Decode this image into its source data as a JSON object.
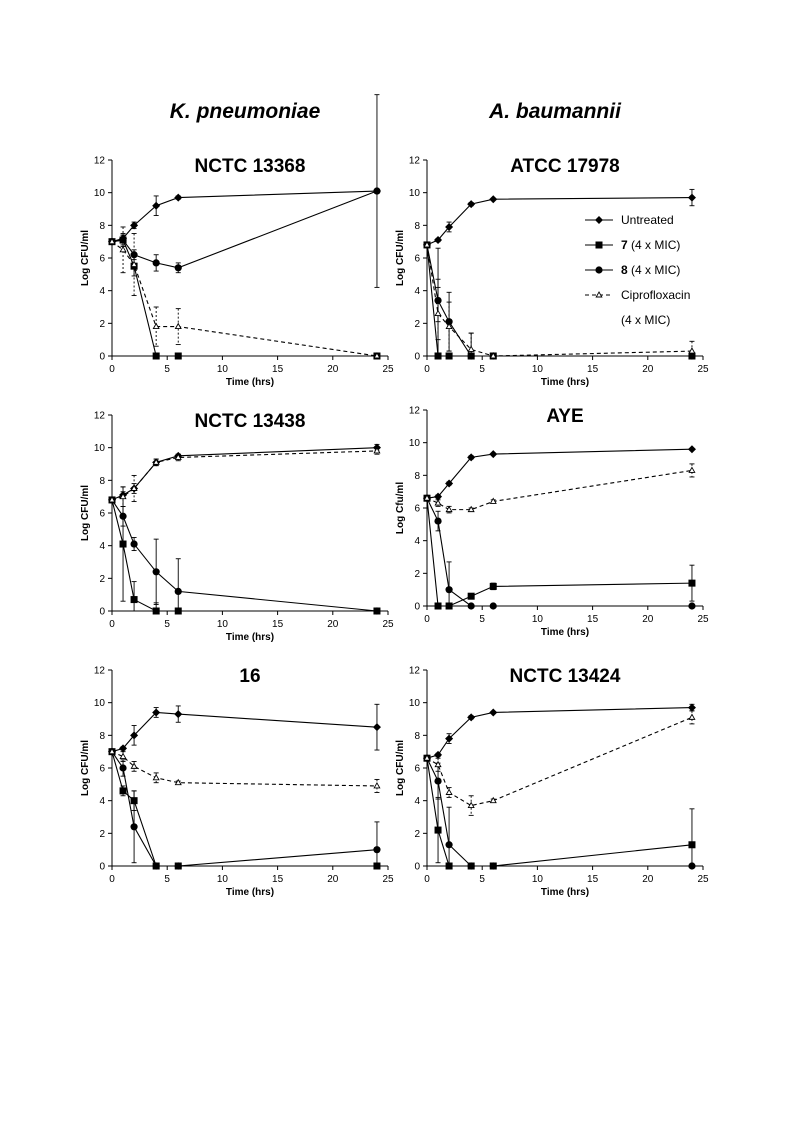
{
  "headers": {
    "left": "K. pneumoniae",
    "right": "A. baumannii"
  },
  "legend": {
    "entries": [
      {
        "key": "untreated",
        "bold": "",
        "label": "Untreated"
      },
      {
        "key": "c7",
        "bold": "7",
        "label": " (4 x MIC)"
      },
      {
        "key": "c8",
        "bold": "8",
        "label": " (4 x MIC)"
      },
      {
        "key": "cipro",
        "bold": "",
        "label": "Ciprofloxacin"
      }
    ],
    "extra_line": "(4 x MIC)"
  },
  "chart_data": [
    {
      "type": "line",
      "title": "NCTC 13368",
      "xlabel": "Time (hrs)",
      "ylabel": "Log CFU/ml",
      "xlim": [
        0,
        25
      ],
      "ylim": [
        0,
        12
      ],
      "xticks": [
        0,
        5,
        10,
        15,
        20,
        25
      ],
      "yticks": [
        0,
        2,
        4,
        6,
        8,
        10,
        12
      ],
      "series": [
        {
          "key": "untreated",
          "x": [
            0,
            1,
            2,
            4,
            6,
            24
          ],
          "y": [
            7.0,
            7.2,
            8.0,
            9.2,
            9.7,
            10.1
          ],
          "err": [
            0,
            0.2,
            0.2,
            0.6,
            0.1,
            0
          ]
        },
        {
          "key": "c7",
          "x": [
            0,
            1,
            2,
            4,
            6,
            24
          ],
          "y": [
            7.0,
            7.1,
            5.5,
            0,
            0,
            0
          ],
          "err": [
            0,
            0.3,
            0.6,
            0,
            0,
            0
          ]
        },
        {
          "key": "c8",
          "x": [
            0,
            1,
            2,
            4,
            6,
            24
          ],
          "y": [
            7.0,
            7.1,
            6.2,
            5.7,
            5.4,
            10.1
          ],
          "err": [
            0,
            0.4,
            0.3,
            0.5,
            0.3,
            5.9
          ]
        },
        {
          "key": "cipro",
          "x": [
            0,
            1,
            2,
            4,
            6,
            24
          ],
          "y": [
            7.0,
            6.5,
            5.6,
            1.8,
            1.8,
            0
          ],
          "err": [
            0,
            1.4,
            1.9,
            1.2,
            1.1,
            0
          ]
        }
      ]
    },
    {
      "type": "line",
      "title": "ATCC 17978",
      "xlabel": "Time (hrs)",
      "ylabel": "Log CFU/ml",
      "xlim": [
        0,
        25
      ],
      "ylim": [
        0,
        12
      ],
      "xticks": [
        0,
        5,
        10,
        15,
        20,
        25
      ],
      "yticks": [
        0,
        2,
        4,
        6,
        8,
        10,
        12
      ],
      "legend": true,
      "series": [
        {
          "key": "untreated",
          "x": [
            0,
            1,
            2,
            4,
            6,
            24
          ],
          "y": [
            6.8,
            7.1,
            7.9,
            9.3,
            9.6,
            9.7
          ],
          "err": [
            0,
            0.1,
            0.3,
            0.1,
            0.05,
            0.5
          ]
        },
        {
          "key": "c7",
          "x": [
            0,
            1,
            2,
            4,
            6,
            24
          ],
          "y": [
            6.8,
            0,
            0,
            0,
            0,
            0
          ],
          "err": [
            0,
            6.6,
            0,
            0,
            0,
            0
          ]
        },
        {
          "key": "c8",
          "x": [
            0,
            1,
            2,
            4,
            6,
            24
          ],
          "y": [
            6.8,
            3.4,
            2.1,
            0,
            0,
            0
          ],
          "err": [
            0,
            1.3,
            1.8,
            1.4,
            0,
            0
          ]
        },
        {
          "key": "cipro",
          "x": [
            0,
            1,
            2,
            4,
            6,
            24
          ],
          "y": [
            6.8,
            2.6,
            1.8,
            0.4,
            0,
            0.3
          ],
          "err": [
            0,
            1.6,
            1.5,
            1.0,
            0,
            0.6
          ]
        }
      ]
    },
    {
      "type": "line",
      "title": "NCTC 13438",
      "xlabel": "Time (hrs)",
      "ylabel": "Log CFU/ml",
      "xlim": [
        0,
        25
      ],
      "ylim": [
        0,
        12
      ],
      "xticks": [
        0,
        5,
        10,
        15,
        20,
        25
      ],
      "yticks": [
        0,
        2,
        4,
        6,
        8,
        10,
        12
      ],
      "series": [
        {
          "key": "untreated",
          "x": [
            0,
            1,
            2,
            4,
            6,
            24
          ],
          "y": [
            6.8,
            7.1,
            7.5,
            9.1,
            9.5,
            10.0
          ],
          "err": [
            0,
            0.2,
            0.3,
            0.2,
            0.1,
            0.2
          ]
        },
        {
          "key": "c7",
          "x": [
            0,
            1,
            2,
            4,
            6,
            24
          ],
          "y": [
            6.8,
            4.1,
            0.7,
            0,
            0,
            0
          ],
          "err": [
            0,
            3.5,
            1.1,
            0.5,
            0,
            0
          ]
        },
        {
          "key": "c8",
          "x": [
            0,
            1,
            2,
            4,
            6,
            24
          ],
          "y": [
            6.8,
            5.8,
            4.1,
            2.4,
            1.2,
            0
          ],
          "err": [
            0,
            0.6,
            0.4,
            2.0,
            2.0,
            0
          ]
        },
        {
          "key": "cipro",
          "x": [
            0,
            1,
            2,
            4,
            6,
            24
          ],
          "y": [
            6.8,
            7.0,
            7.5,
            9.1,
            9.4,
            9.8
          ],
          "err": [
            0,
            0.6,
            0.8,
            0.2,
            0.2,
            0.2
          ]
        }
      ]
    },
    {
      "type": "line",
      "title": "AYE",
      "xlabel": "Time (hrs)",
      "ylabel": "Log Cfu/ml",
      "xlim": [
        0,
        25
      ],
      "ylim": [
        0,
        12
      ],
      "xticks": [
        0,
        5,
        10,
        15,
        20,
        25
      ],
      "yticks": [
        0,
        2,
        4,
        6,
        8,
        10,
        12
      ],
      "series": [
        {
          "key": "untreated",
          "x": [
            0,
            1,
            2,
            4,
            6,
            24
          ],
          "y": [
            6.6,
            6.7,
            7.5,
            9.1,
            9.3,
            9.6
          ],
          "err": [
            0,
            0.1,
            0.1,
            0.1,
            0.05,
            0.05
          ]
        },
        {
          "key": "c7",
          "x": [
            0,
            1,
            2,
            4,
            6,
            24
          ],
          "y": [
            6.6,
            0,
            0,
            0.6,
            1.2,
            1.4
          ],
          "err": [
            0,
            0,
            0,
            0,
            0.2,
            1.1
          ]
        },
        {
          "key": "c8",
          "x": [
            0,
            1,
            2,
            4,
            6,
            24
          ],
          "y": [
            6.6,
            5.2,
            1.0,
            0,
            0,
            0
          ],
          "err": [
            0,
            0.6,
            1.7,
            0,
            0,
            0
          ]
        },
        {
          "key": "cipro",
          "x": [
            0,
            1,
            2,
            4,
            6,
            24
          ],
          "y": [
            6.6,
            6.3,
            5.9,
            5.9,
            6.4,
            8.3
          ],
          "err": [
            0,
            0.2,
            0.2,
            0.1,
            0.1,
            0.4
          ]
        }
      ]
    },
    {
      "type": "line",
      "title": "16",
      "xlabel": "Time (hrs)",
      "ylabel": "Log CFU/ml",
      "xlim": [
        0,
        25
      ],
      "ylim": [
        0,
        12
      ],
      "xticks": [
        0,
        5,
        10,
        15,
        20,
        25
      ],
      "yticks": [
        0,
        2,
        4,
        6,
        8,
        10,
        12
      ],
      "series": [
        {
          "key": "untreated",
          "x": [
            0,
            1,
            2,
            4,
            6,
            24
          ],
          "y": [
            7.0,
            7.2,
            8.0,
            9.4,
            9.3,
            8.5
          ],
          "err": [
            0,
            0.1,
            0.6,
            0.3,
            0.5,
            1.4
          ]
        },
        {
          "key": "c7",
          "x": [
            0,
            1,
            2,
            4,
            6,
            24
          ],
          "y": [
            7.0,
            4.6,
            4.0,
            0,
            0,
            0
          ],
          "err": [
            0,
            0.3,
            0.6,
            0,
            0,
            0
          ]
        },
        {
          "key": "c8",
          "x": [
            0,
            1,
            2,
            4,
            6,
            24
          ],
          "y": [
            7.0,
            6.0,
            2.4,
            0,
            0,
            1.0
          ],
          "err": [
            0,
            0.5,
            2.2,
            0,
            0,
            1.7
          ]
        },
        {
          "key": "cipro",
          "x": [
            0,
            1,
            2,
            4,
            6,
            24
          ],
          "y": [
            7.0,
            6.7,
            6.1,
            5.4,
            5.1,
            4.9
          ],
          "err": [
            0,
            0.3,
            0.3,
            0.3,
            0.1,
            0.4
          ]
        }
      ]
    },
    {
      "type": "line",
      "title": "NCTC 13424",
      "xlabel": "Time (hrs)",
      "ylabel": "Log CFU/ml",
      "xlim": [
        0,
        25
      ],
      "ylim": [
        0,
        12
      ],
      "xticks": [
        0,
        5,
        10,
        15,
        20,
        25
      ],
      "yticks": [
        0,
        2,
        4,
        6,
        8,
        10,
        12
      ],
      "series": [
        {
          "key": "untreated",
          "x": [
            0,
            1,
            2,
            4,
            6,
            24
          ],
          "y": [
            6.6,
            6.8,
            7.8,
            9.1,
            9.4,
            9.7
          ],
          "err": [
            0,
            0.1,
            0.3,
            0.1,
            0.05,
            0.2
          ]
        },
        {
          "key": "c7",
          "x": [
            0,
            1,
            2,
            4,
            6,
            24
          ],
          "y": [
            6.6,
            2.2,
            0,
            0,
            0,
            1.3
          ],
          "err": [
            0,
            2.0,
            0,
            0,
            0,
            2.2
          ]
        },
        {
          "key": "c8",
          "x": [
            0,
            1,
            2,
            4,
            6,
            24
          ],
          "y": [
            6.6,
            5.2,
            1.3,
            0,
            0,
            0
          ],
          "err": [
            0,
            1.1,
            2.3,
            0,
            0,
            0
          ]
        },
        {
          "key": "cipro",
          "x": [
            0,
            1,
            2,
            4,
            6,
            24
          ],
          "y": [
            6.6,
            6.2,
            4.5,
            3.7,
            4.0,
            9.1
          ],
          "err": [
            0,
            0.4,
            0.3,
            0.6,
            0.1,
            0.4
          ]
        }
      ]
    }
  ]
}
